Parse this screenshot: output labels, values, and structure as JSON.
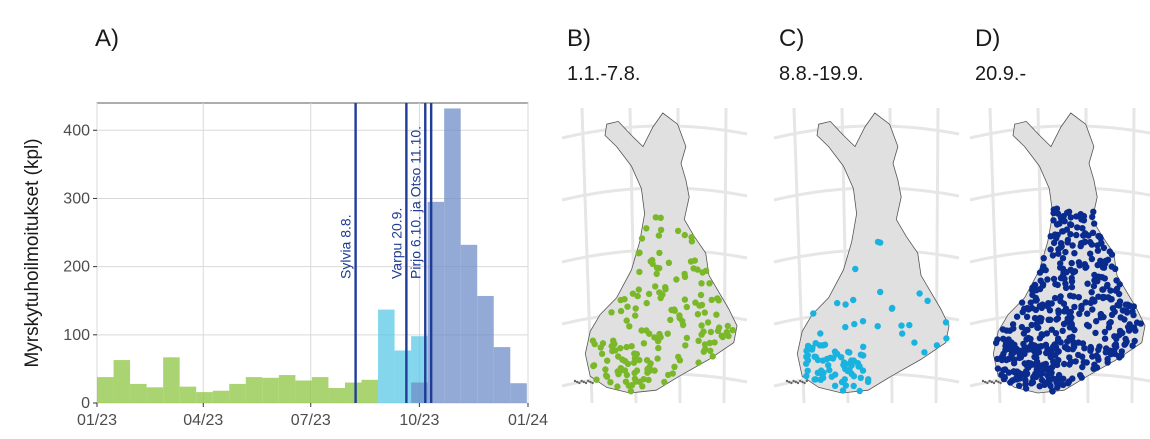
{
  "chart_data": [
    {
      "panel": "A)",
      "type": "bar",
      "ylabel": "Myrskytuhoilmoitukset (kpl)",
      "xlabel": "",
      "ylim": [
        0,
        440
      ],
      "y_ticks": [
        0,
        100,
        200,
        300,
        400
      ],
      "x_ticks": [
        "01/23",
        "04/23",
        "07/23",
        "10/23",
        "01/24"
      ],
      "x_range": [
        "2023-01-01",
        "2024-01-01"
      ],
      "grid": true,
      "series": [
        {
          "color": "#8dc641",
          "bins": [
            {
              "start": "2023-01-01",
              "end": "2023-01-15",
              "value": 38
            },
            {
              "start": "2023-01-15",
              "end": "2023-01-29",
              "value": 63
            },
            {
              "start": "2023-01-29",
              "end": "2023-02-12",
              "value": 28
            },
            {
              "start": "2023-02-12",
              "end": "2023-02-26",
              "value": 23
            },
            {
              "start": "2023-02-26",
              "end": "2023-03-12",
              "value": 67
            },
            {
              "start": "2023-03-12",
              "end": "2023-03-26",
              "value": 24
            },
            {
              "start": "2023-03-26",
              "end": "2023-04-09",
              "value": 16
            },
            {
              "start": "2023-04-09",
              "end": "2023-04-23",
              "value": 18
            },
            {
              "start": "2023-04-23",
              "end": "2023-05-07",
              "value": 28
            },
            {
              "start": "2023-05-07",
              "end": "2023-05-21",
              "value": 38
            },
            {
              "start": "2023-05-21",
              "end": "2023-06-04",
              "value": 37
            },
            {
              "start": "2023-06-04",
              "end": "2023-06-18",
              "value": 41
            },
            {
              "start": "2023-06-18",
              "end": "2023-07-02",
              "value": 33
            },
            {
              "start": "2023-07-02",
              "end": "2023-07-16",
              "value": 38
            },
            {
              "start": "2023-07-16",
              "end": "2023-07-30",
              "value": 22
            },
            {
              "start": "2023-07-30",
              "end": "2023-08-13",
              "value": 30
            },
            {
              "start": "2023-08-13",
              "end": "2023-08-27",
              "value": 34
            }
          ]
        },
        {
          "color": "#5bc8e6",
          "bins": [
            {
              "start": "2023-08-27",
              "end": "2023-09-10",
              "value": 137
            },
            {
              "start": "2023-09-10",
              "end": "2023-09-24",
              "value": 77
            },
            {
              "start": "2023-09-24",
              "end": "2023-10-08",
              "value": 98
            }
          ]
        },
        {
          "color": "#6f8cc8",
          "bins": [
            {
              "start": "2023-09-24",
              "end": "2023-10-08",
              "value": 30
            },
            {
              "start": "2023-10-08",
              "end": "2023-10-22",
              "value": 295
            },
            {
              "start": "2023-10-22",
              "end": "2023-11-05",
              "value": 432
            },
            {
              "start": "2023-11-05",
              "end": "2023-11-19",
              "value": 232
            },
            {
              "start": "2023-11-19",
              "end": "2023-12-03",
              "value": 157
            },
            {
              "start": "2023-12-03",
              "end": "2023-12-17",
              "value": 82
            },
            {
              "start": "2023-12-17",
              "end": "2023-12-31",
              "value": 29
            }
          ]
        }
      ],
      "events": [
        {
          "date": "2023-08-08",
          "label": "Sylvia 8.8."
        },
        {
          "date": "2023-09-20",
          "label": "Varpu 20.9."
        },
        {
          "date": "2023-10-06",
          "label": "Pirjo 6.10. ja Otso 11.10."
        },
        {
          "date": "2023-10-11",
          "label": ""
        }
      ],
      "event_color": "#1f3c96"
    },
    {
      "panel": "B)",
      "type": "scatter",
      "subtitle": "1.1.-7.8.",
      "point_color": "#7ab82a",
      "points_shown": "many"
    },
    {
      "panel": "C)",
      "type": "scatter",
      "subtitle": "8.8.-19.9.",
      "point_color": "#1ab3e0",
      "points_shown": "many"
    },
    {
      "panel": "D)",
      "type": "scatter",
      "subtitle": "20.9.-",
      "point_color": "#0a2b8e",
      "points_shown": "many"
    }
  ]
}
